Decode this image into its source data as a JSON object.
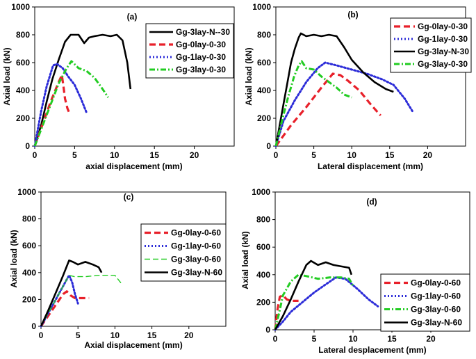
{
  "chart_data": [
    {
      "type": "line",
      "panel": "(a)",
      "xlabel": "axial displacement (mm)",
      "ylabel": "Axial load (kN)",
      "xlim": [
        0,
        25
      ],
      "ylim": [
        0,
        1000
      ],
      "xticks": [
        "0",
        "5",
        "10",
        "15",
        "20"
      ],
      "yticks": [
        "0",
        "200",
        "400",
        "600",
        "800",
        "1000"
      ],
      "legend_position": "top-right",
      "series": [
        {
          "name": "Gg-3lay-N--30",
          "color": "#000000",
          "style": "solid",
          "x": [
            0,
            0.8,
            1.5,
            2.2,
            3,
            3.8,
            4.5,
            5.5,
            6.2,
            6.8,
            7.5,
            8.5,
            9.5,
            10.3,
            11,
            11.6,
            12
          ],
          "y": [
            0,
            150,
            320,
            480,
            620,
            750,
            800,
            800,
            740,
            780,
            790,
            800,
            790,
            800,
            760,
            600,
            410
          ]
        },
        {
          "name": "Gg-0lay-0-30",
          "color": "#e8202a",
          "style": "dash",
          "x": [
            0,
            1,
            2,
            3,
            3.4,
            3.6,
            3.8,
            4.1,
            4.4
          ],
          "y": [
            0,
            160,
            320,
            460,
            510,
            430,
            340,
            270,
            230
          ]
        },
        {
          "name": "Gg-1lay-0-30",
          "color": "#2b2bd8",
          "style": "dot",
          "x": [
            0,
            0.8,
            1.5,
            2.3,
            2.8,
            3.5,
            4.2,
            5,
            5.8,
            6.5
          ],
          "y": [
            0,
            250,
            430,
            580,
            590,
            560,
            500,
            440,
            340,
            240
          ]
        },
        {
          "name": "Gg-3lay-0-30",
          "color": "#22cc22",
          "style": "dashdot",
          "x": [
            0,
            1,
            2,
            3,
            4,
            4.6,
            5.5,
            6.5,
            7.5,
            8.5,
            9.2
          ],
          "y": [
            0,
            150,
            300,
            450,
            560,
            610,
            560,
            540,
            490,
            410,
            350
          ]
        }
      ]
    },
    {
      "type": "line",
      "panel": "(b)",
      "xlabel": "Lateral displacement (mm)",
      "ylabel": "Axial load (kN)",
      "xlim": [
        0,
        25
      ],
      "ylim": [
        0,
        1000
      ],
      "xticks": [
        "0",
        "5",
        "10",
        "15",
        "20"
      ],
      "yticks": [
        "0",
        "200",
        "400",
        "600",
        "800",
        "1000"
      ],
      "legend_position": "top-right",
      "series": [
        {
          "name": "Gg-0lay-0-30",
          "color": "#e8202a",
          "style": "dash",
          "x": [
            0,
            2,
            4,
            6,
            7.5,
            8.5,
            9.5,
            11,
            12.5,
            13.8
          ],
          "y": [
            0,
            150,
            280,
            420,
            520,
            510,
            470,
            400,
            300,
            220
          ]
        },
        {
          "name": "Gg-1lay-0-30",
          "color": "#2b2bd8",
          "style": "dot",
          "x": [
            0,
            1,
            2.5,
            4,
            5.5,
            6.5,
            8,
            10,
            12,
            14,
            15.5,
            17,
            18
          ],
          "y": [
            0,
            180,
            330,
            460,
            560,
            600,
            580,
            550,
            520,
            480,
            440,
            340,
            250
          ]
        },
        {
          "name": "Gg-3lay-N-30",
          "color": "#000000",
          "style": "solid",
          "x": [
            0,
            0.5,
            1,
            1.5,
            2,
            2.5,
            3,
            3.3,
            4,
            5,
            6,
            7,
            8,
            9,
            10,
            11.5,
            13,
            14.5,
            15.5
          ],
          "y": [
            0,
            150,
            300,
            450,
            600,
            700,
            780,
            810,
            790,
            800,
            790,
            800,
            790,
            710,
            620,
            530,
            460,
            410,
            390
          ]
        },
        {
          "name": "Gg-3lay-0-30",
          "color": "#22cc22",
          "style": "dashdot",
          "x": [
            0,
            0.8,
            1.6,
            2.4,
            3,
            3.4,
            4,
            5,
            6,
            7,
            8,
            9,
            10
          ],
          "y": [
            0,
            180,
            350,
            500,
            580,
            610,
            560,
            550,
            500,
            460,
            420,
            370,
            350
          ]
        }
      ]
    },
    {
      "type": "line",
      "panel": "(c)",
      "xlabel": "Axial displacement (mm)",
      "ylabel": "Axial load (kN)",
      "xlim": [
        0,
        25
      ],
      "ylim": [
        0,
        1000
      ],
      "xticks": [
        "0",
        "5",
        "10",
        "15",
        "20"
      ],
      "yticks": [
        "0",
        "200",
        "400",
        "600",
        "800",
        "1000"
      ],
      "legend_position": "right",
      "series": [
        {
          "name": "Gg-0lay-0-60",
          "color": "#e8202a",
          "style": "dash",
          "x": [
            0,
            1,
            2,
            3,
            3.5,
            4,
            4.6,
            5.5,
            6.5
          ],
          "y": [
            0,
            80,
            160,
            240,
            260,
            230,
            210,
            210,
            210
          ]
        },
        {
          "name": "Gg-1lay-0-60",
          "color": "#2b2bd8",
          "style": "dot",
          "x": [
            0,
            1,
            2,
            3,
            3.8,
            4.2,
            4.6,
            5
          ],
          "y": [
            0,
            100,
            200,
            300,
            380,
            330,
            240,
            170
          ]
        },
        {
          "name": "Gg-3lay-0-60",
          "color": "#22cc22",
          "style": "dashthin",
          "x": [
            0,
            1,
            2,
            3,
            3.8,
            4.5,
            6,
            8,
            10,
            11
          ],
          "y": [
            0,
            100,
            200,
            300,
            380,
            370,
            370,
            380,
            380,
            310
          ]
        },
        {
          "name": "Gg-3lay-N-60",
          "color": "#000000",
          "style": "solid",
          "x": [
            0,
            1,
            2,
            3,
            3.8,
            4.3,
            5,
            6,
            7,
            7.8,
            8.2
          ],
          "y": [
            0,
            120,
            250,
            380,
            490,
            480,
            460,
            480,
            460,
            440,
            400
          ]
        }
      ]
    },
    {
      "type": "line",
      "panel": "(d)",
      "xlabel": "Lateral desplacement (mm)",
      "ylabel": "Axial load (kN)",
      "xlim": [
        0,
        25
      ],
      "ylim": [
        0,
        1000
      ],
      "xticks": [
        "0",
        "5",
        "10",
        "15",
        "20"
      ],
      "yticks": [
        "0",
        "200",
        "400",
        "600",
        "800",
        "1000"
      ],
      "legend_position": "right",
      "series": [
        {
          "name": "Gg-0lay-0-60",
          "color": "#e8202a",
          "style": "dash",
          "x": [
            0,
            0.3,
            0.6,
            1,
            1.5,
            2,
            3
          ],
          "y": [
            0,
            150,
            240,
            250,
            220,
            210,
            210
          ]
        },
        {
          "name": "Gg-1lay-0-60",
          "color": "#2b2bd8",
          "style": "dot",
          "x": [
            0,
            1,
            2,
            3.5,
            5,
            6.5,
            7.8,
            9,
            10.5,
            12,
            13.2
          ],
          "y": [
            0,
            60,
            130,
            200,
            270,
            330,
            380,
            370,
            300,
            220,
            170
          ]
        },
        {
          "name": "Gg-3lay-0-60",
          "color": "#22cc22",
          "style": "dashdot",
          "x": [
            0,
            0.5,
            1,
            2,
            3,
            4,
            5.5,
            7,
            8.5,
            9.5,
            10
          ],
          "y": [
            0,
            120,
            250,
            350,
            400,
            390,
            370,
            380,
            380,
            370,
            320
          ]
        },
        {
          "name": "Gg-3lay-N-60",
          "color": "#000000",
          "style": "solid",
          "x": [
            0,
            1,
            2,
            3,
            4,
            4.6,
            5.5,
            6.5,
            7.5,
            8.5,
            9.5,
            9.8
          ],
          "y": [
            0,
            100,
            220,
            350,
            470,
            500,
            470,
            490,
            470,
            460,
            450,
            400
          ]
        }
      ]
    }
  ]
}
